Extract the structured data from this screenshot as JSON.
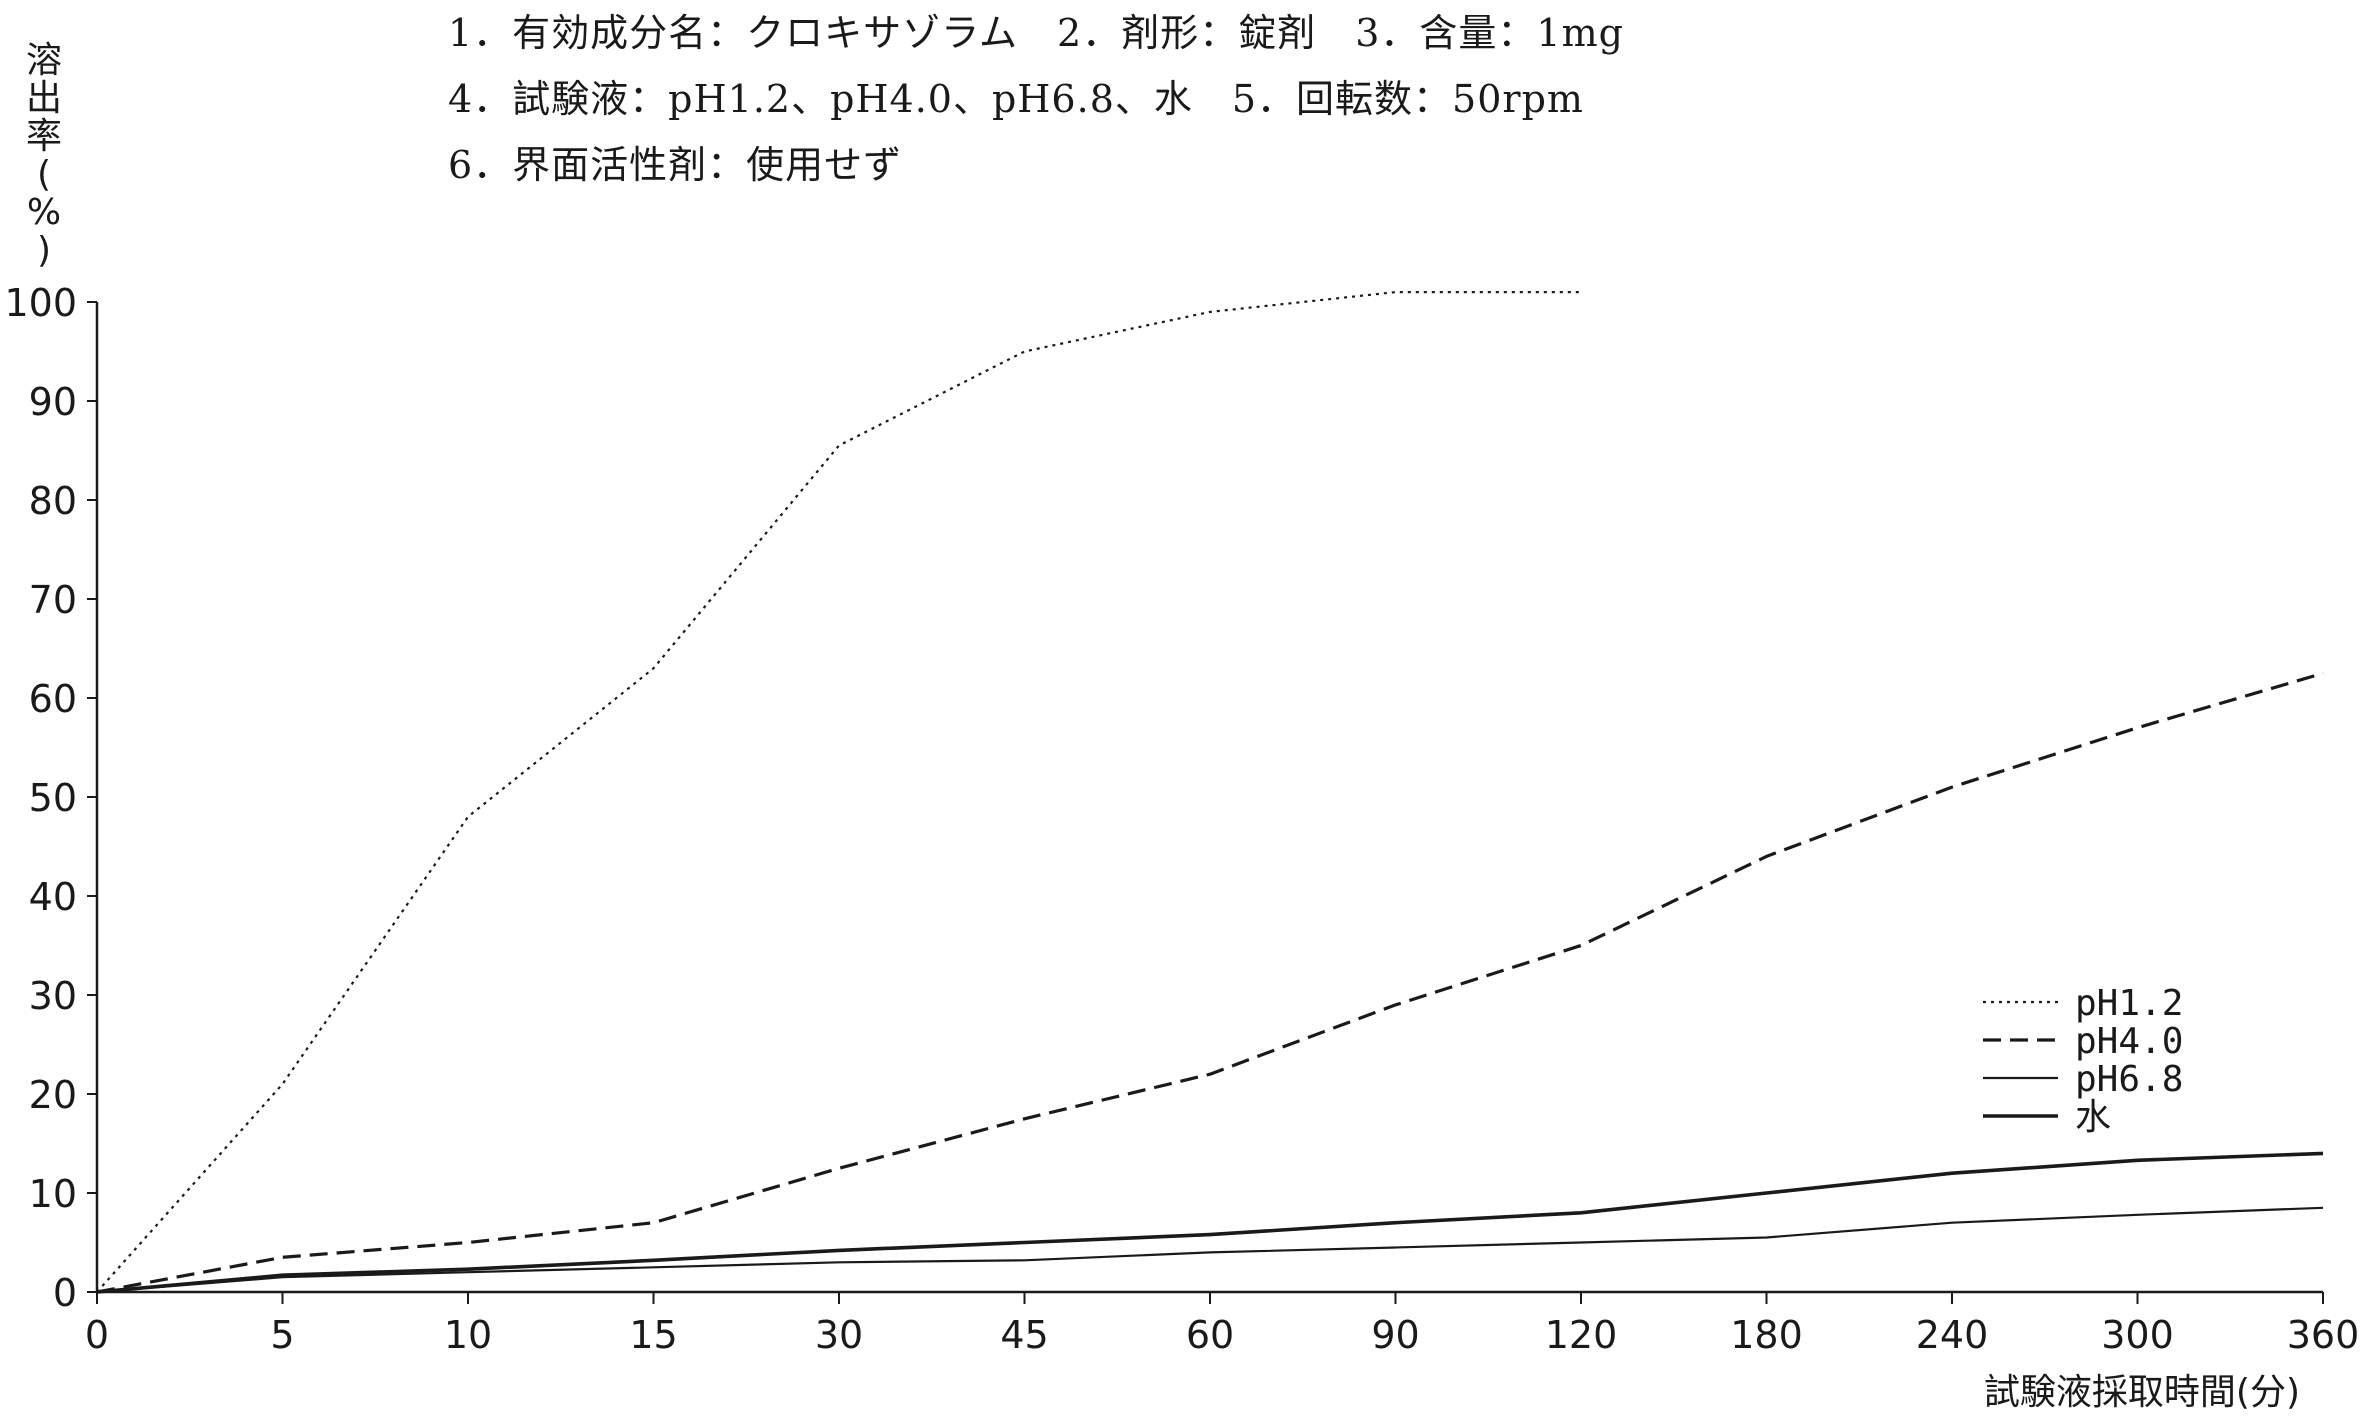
{
  "conditions": [
    "1．有効成分名：クロキサゾラム　2．剤形：錠剤　3．含量：1mg",
    "4．試験液：pH1.2、pH4.0、pH6.8、水　5．回転数：50rpm",
    "6．界面活性剤：使用せず"
  ],
  "chart_data": {
    "type": "line",
    "title": "",
    "ylabel": "溶出率(%)",
    "ylabel_chars": [
      "溶",
      "出",
      "率",
      "(",
      "%",
      ")"
    ],
    "xlabel": "試験液採取時間(分)",
    "x_ticks": [
      "0",
      "5",
      "10",
      "15",
      "30",
      "45",
      "60",
      "90",
      "120",
      "180",
      "240",
      "300",
      "360"
    ],
    "y_ticks": [
      "0",
      "10",
      "20",
      "30",
      "40",
      "50",
      "60",
      "70",
      "80",
      "90",
      "100"
    ],
    "ylim": [
      0,
      100
    ],
    "x_scale": "categorical (unequal intervals)",
    "grid": false,
    "legend_position": "right",
    "series": [
      {
        "name": "pH1.2",
        "style": "dotted",
        "color": "#1a1a1a",
        "x": [
          "0",
          "5",
          "10",
          "15",
          "30",
          "45",
          "60",
          "90",
          "120"
        ],
        "values": [
          0,
          21,
          48,
          63,
          85.5,
          95,
          99,
          101,
          101
        ]
      },
      {
        "name": "pH4.0",
        "style": "dashed",
        "color": "#1a1a1a",
        "x": [
          "0",
          "5",
          "10",
          "15",
          "30",
          "45",
          "60",
          "90",
          "120",
          "180",
          "240",
          "300",
          "360"
        ],
        "values": [
          0,
          3.5,
          5,
          7,
          12.5,
          17.5,
          22,
          29,
          35,
          44,
          51,
          57,
          62.5
        ]
      },
      {
        "name": "pH6.8",
        "style": "solid",
        "color": "#1a1a1a",
        "x": [
          "0",
          "5",
          "10",
          "15",
          "30",
          "45",
          "60",
          "90",
          "120",
          "180",
          "240",
          "300",
          "360"
        ],
        "values": [
          0,
          1.5,
          2,
          2.5,
          3,
          3.2,
          4,
          4.5,
          5,
          5.5,
          7,
          7.8,
          8.5
        ]
      },
      {
        "name": "水",
        "style": "solid-bold",
        "color": "#1a1a1a",
        "x": [
          "0",
          "5",
          "10",
          "15",
          "30",
          "45",
          "60",
          "90",
          "120",
          "180",
          "240",
          "300",
          "360"
        ],
        "values": [
          0,
          1.7,
          2.3,
          3.2,
          4.2,
          5,
          5.8,
          7,
          8,
          10,
          12,
          13.3,
          14
        ]
      }
    ]
  }
}
